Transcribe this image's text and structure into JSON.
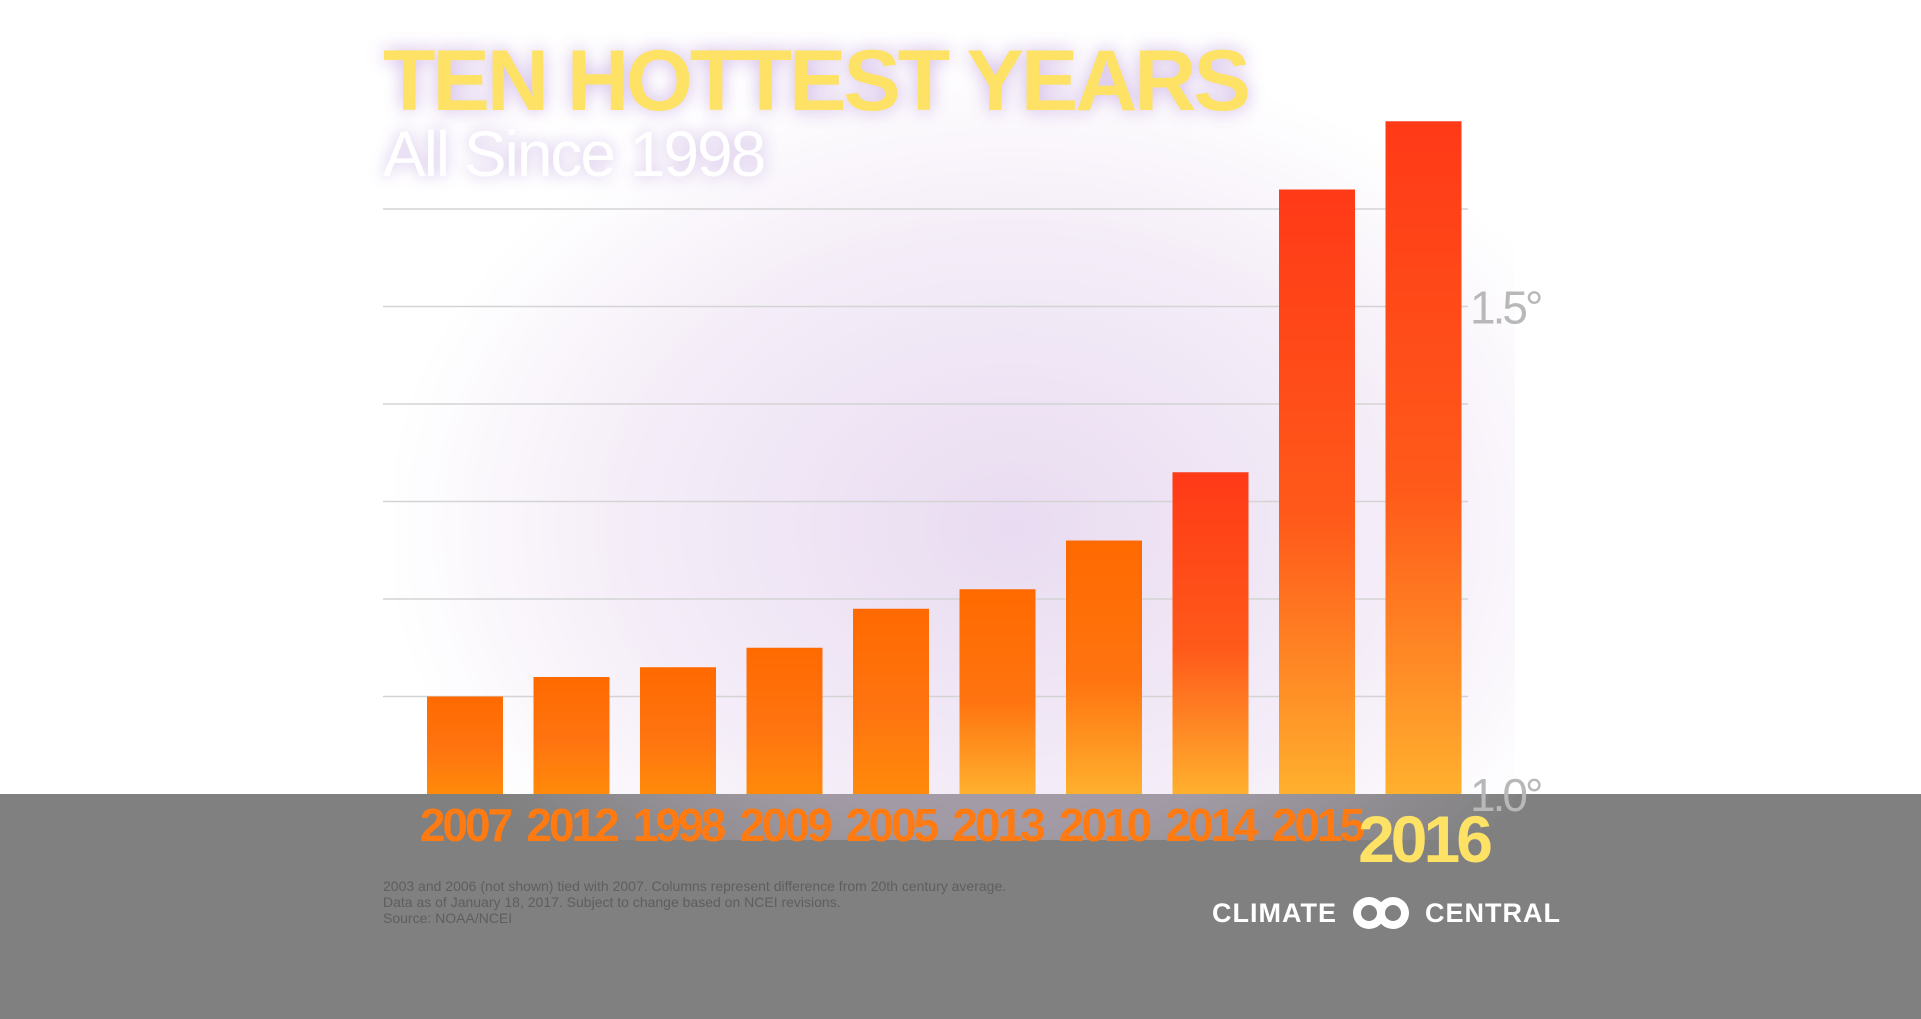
{
  "title": "TEN HOTTEST YEARS",
  "subtitle": "All Since 1998",
  "footnote": [
    "2003 and 2006 (not shown) tied with 2007. Columns represent difference from 20th century average.",
    "Data as of January 18, 2017. Subject to change based on NCEI revisions.",
    "Source: NOAA/NCEI"
  ],
  "logo": {
    "left_word": "CLIMATE",
    "right_word": "CENTRAL"
  },
  "colors": {
    "bar_low": "#ff6a00",
    "bar_high": "#ff3a17",
    "bar_base_glow": "#ffb02e",
    "year_label": "#ff7a10",
    "highlight_label": "#fde265",
    "title": "#fde265",
    "band": "#808080"
  },
  "chart_data": {
    "type": "bar",
    "title": "TEN HOTTEST YEARS",
    "subtitle": "All Since 1998",
    "categories": [
      "2007",
      "2012",
      "1998",
      "2009",
      "2005",
      "2013",
      "2010",
      "2014",
      "2015",
      "2016"
    ],
    "values": [
      1.1,
      1.12,
      1.13,
      1.15,
      1.19,
      1.21,
      1.26,
      1.33,
      1.62,
      1.69
    ],
    "highlight": "2016",
    "ylim": [
      1.0,
      1.72
    ],
    "yticks": [
      {
        "value": 1.0,
        "label": "1.0°"
      },
      {
        "value": 1.5,
        "label": "1.5°"
      }
    ],
    "gridlines": [
      1.1,
      1.2,
      1.3,
      1.4,
      1.5,
      1.6
    ],
    "grid": true,
    "ylabel": "",
    "xlabel": ""
  }
}
